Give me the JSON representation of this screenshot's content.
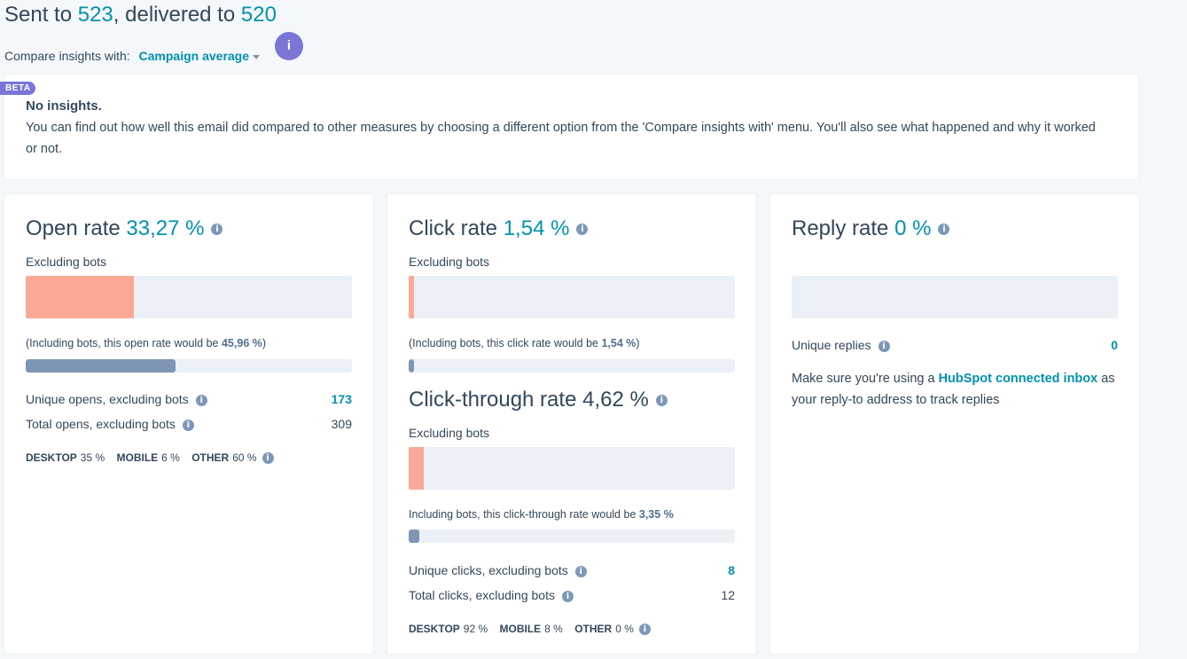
{
  "header": {
    "sent_prefix": "Sent to",
    "sent_count": "523",
    "delivered_prefix": ", delivered to",
    "delivered_count": "520",
    "compare_label": "Compare insights with:",
    "compare_value": "Campaign average",
    "info_bubble": "i"
  },
  "insights": {
    "badge": "BETA",
    "title": "No insights.",
    "body": "You can find out how well this email did compared to other measures by choosing a different option from the 'Compare insights with' menu. You'll also see what happened and why it worked or not."
  },
  "open": {
    "title": "Open rate",
    "value": "33,27 %",
    "excl_label": "Excluding bots",
    "rate_fraction": 0.3327,
    "incl_prefix": "(Including bots, this open rate would be ",
    "incl_value": "45,96 %",
    "incl_suffix": ")",
    "incl_fraction": 0.4596,
    "unique_label": "Unique opens, excluding bots",
    "unique_value": "173",
    "total_label": "Total opens, excluding bots",
    "total_value": "309",
    "desktop_label": "DESKTOP",
    "desktop_value": "35 %",
    "mobile_label": "MOBILE",
    "mobile_value": "6 %",
    "other_label": "OTHER",
    "other_value": "60 %"
  },
  "click": {
    "title": "Click rate",
    "value": "1,54 %",
    "excl_label": "Excluding bots",
    "rate_fraction": 0.0154,
    "incl_prefix": "(Including bots, this click rate would be ",
    "incl_value": "1,54 %",
    "incl_suffix": ")",
    "incl_fraction": 0.0154,
    "ctr_title": "Click-through rate",
    "ctr_value": "4,62 %",
    "ctr_excl_label": "Excluding bots",
    "ctr_fraction": 0.0462,
    "ctr_incl_prefix": "Including bots, this click-through rate would be ",
    "ctr_incl_value": "3,35 %",
    "ctr_incl_fraction": 0.0335,
    "unique_label": "Unique clicks, excluding bots",
    "unique_value": "8",
    "total_label": "Total clicks, excluding bots",
    "total_value": "12",
    "desktop_label": "DESKTOP",
    "desktop_value": "92 %",
    "mobile_label": "MOBILE",
    "mobile_value": "8 %",
    "other_label": "OTHER",
    "other_value": "0 %"
  },
  "reply": {
    "title": "Reply rate",
    "value": "0 %",
    "rate_fraction": 0,
    "unique_label": "Unique replies",
    "unique_value": "0",
    "note_prefix": "Make sure you're using a ",
    "note_link": "HubSpot connected inbox",
    "note_suffix": " as your reply-to address to track replies"
  },
  "icons": {
    "info": "i"
  },
  "colors": {
    "accent": "#0091ae",
    "beta": "#7b76d6",
    "bar_primary": "#ff9b85",
    "bar_secondary": "#7e95b5"
  }
}
